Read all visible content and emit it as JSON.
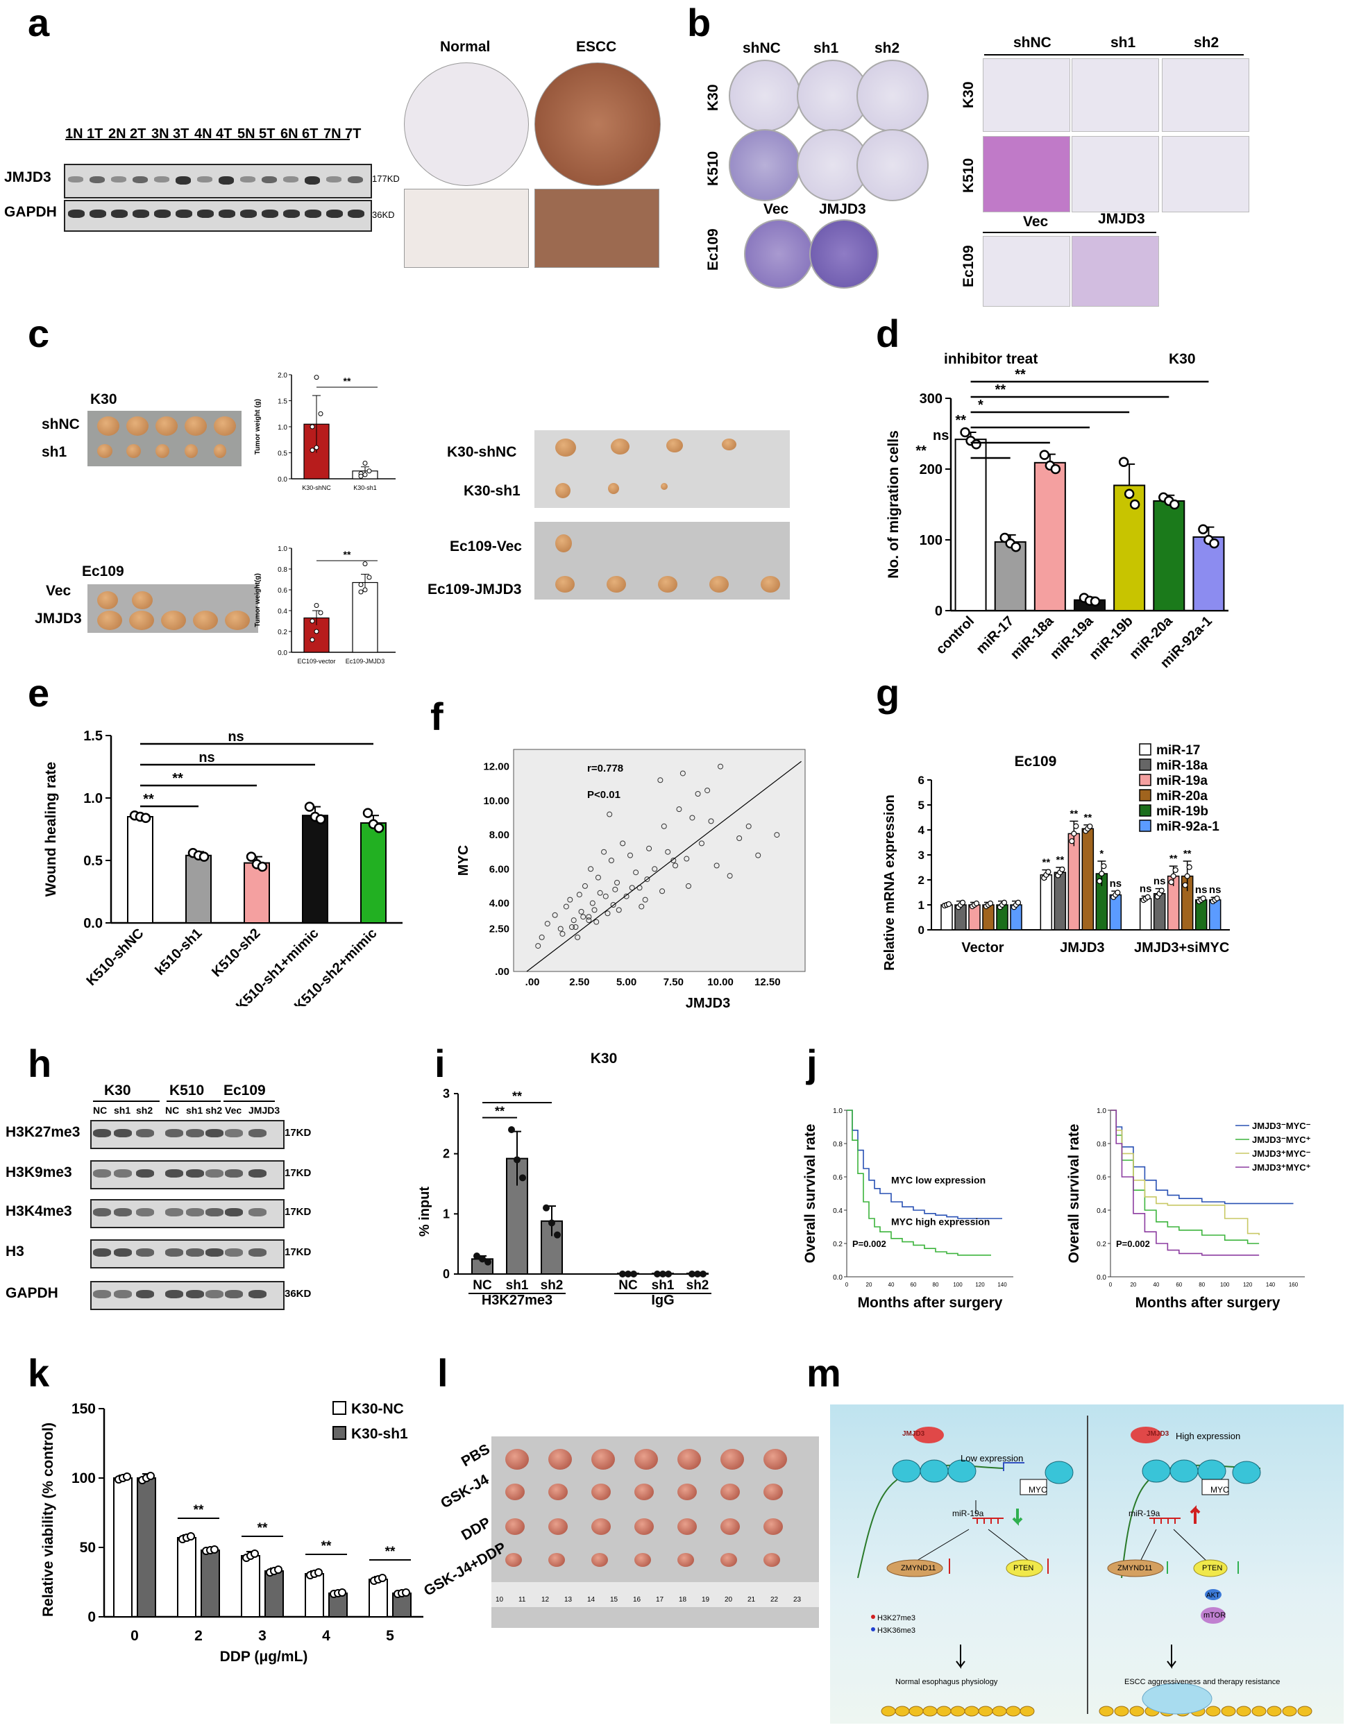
{
  "panels": {
    "a": {
      "letter": "a",
      "lanes": [
        "1N",
        "1T",
        "2N",
        "2T",
        "3N",
        "3T",
        "4N",
        "4T",
        "5N",
        "5T",
        "6N",
        "6T",
        "7N",
        "7T"
      ],
      "rows": [
        "JMJD3",
        "GAPDH"
      ],
      "sizes": [
        "177KD",
        "36KD"
      ],
      "ihc_labels": [
        "Normal",
        "ESCC"
      ]
    },
    "b": {
      "letter": "b",
      "col_labels": [
        "shNC",
        "sh1",
        "sh2"
      ],
      "row_labels": [
        "K30",
        "K510",
        "Ec109"
      ],
      "ec_labels": [
        "Vec",
        "JMJD3"
      ]
    },
    "c": {
      "letter": "c",
      "top": {
        "cell": "K30",
        "rows": [
          "shNC",
          "sh1"
        ],
        "ylabel": "Tumor weight (g)",
        "ticks": [
          "0.0",
          "0.5",
          "1.0",
          "1.5",
          "2.0"
        ],
        "cats": [
          "K30-shNC",
          "K30-sh1"
        ],
        "sig": "**"
      },
      "bottom": {
        "cell": "Ec109",
        "rows": [
          "Vec",
          "JMJD3"
        ],
        "ylabel": "Tumor weight(g)",
        "ticks": [
          "0.0",
          "0.2",
          "0.4",
          "0.6",
          "0.8",
          "1.0"
        ],
        "cats": [
          "EC109-vector",
          "Ec109-JMJD3"
        ],
        "sig": "**"
      },
      "right_labels": [
        "K30-shNC",
        "K30-sh1",
        "Ec109-Vec",
        "Ec109-JMJD3"
      ]
    },
    "d": {
      "letter": "d",
      "subtitle": "inhibitor treat",
      "cell": "K30"
    },
    "e": {
      "letter": "e"
    },
    "f": {
      "letter": "f",
      "r": "r=0.778",
      "p": "P<0.01"
    },
    "g": {
      "letter": "g",
      "cell": "Ec109"
    },
    "h": {
      "letter": "h",
      "groups": [
        "K30",
        "K510",
        "Ec109"
      ],
      "lanes": [
        "NC",
        "sh1",
        "sh2",
        "NC",
        "sh1",
        "sh2",
        "Vec",
        "JMJD3"
      ],
      "rows": [
        "H3K27me3",
        "H3K9me3",
        "H3K4me3",
        "H3",
        "GAPDH"
      ],
      "sizes": [
        "17KD",
        "17KD",
        "17KD",
        "17KD",
        "36KD"
      ]
    },
    "i": {
      "letter": "i"
    },
    "j": {
      "letter": "j"
    },
    "k": {
      "letter": "k"
    },
    "l": {
      "letter": "l",
      "rows": [
        "PBS",
        "GSK-J4",
        "DDP",
        "GSK-J4+DDP"
      ],
      "ruler": [
        "10",
        "11",
        "12",
        "13",
        "14",
        "15",
        "16",
        "17",
        "18",
        "19",
        "20",
        "21",
        "22",
        "23"
      ]
    },
    "m": {
      "letter": "m",
      "left": {
        "expr": "Low expression",
        "jmjd3": "JMJD3",
        "myc": "MYC",
        "mir": "miR-19a",
        "z": "ZMYND11",
        "pten": "PTEN",
        "legend1": "H3K27me3",
        "legend2": "H3K36me3",
        "outcome": "Normal esophagus physiology"
      },
      "right": {
        "expr": "High expression",
        "jmjd3": "JMJD3",
        "myc": "MYC",
        "mir": "miR-19a",
        "z": "ZMYND11",
        "pten": "PTEN",
        "akt": "AKT",
        "mtor": "mTOR",
        "outcome": "ESCC aggressiveness and therapy resistance"
      }
    }
  },
  "chart_data": [
    {
      "id": "c-top",
      "type": "bar",
      "title": "",
      "xlabel": "",
      "ylabel": "Tumor weight (g)",
      "categories": [
        "K30-shNC",
        "K30-sh1"
      ],
      "values": [
        1.05,
        0.15
      ],
      "errors": [
        0.55,
        0.08
      ],
      "ylim": [
        0,
        2.0
      ],
      "points": [
        [
          1.95,
          1.25,
          1.0,
          0.6,
          0.55
        ],
        [
          0.3,
          0.15,
          0.1,
          0.08,
          0.05
        ]
      ],
      "colors": [
        "#b71c1c",
        "#ffffff"
      ]
    },
    {
      "id": "c-bottom",
      "type": "bar",
      "ylabel": "Tumor weight(g)",
      "categories": [
        "EC109-vector",
        "Ec109-JMJD3"
      ],
      "values": [
        0.33,
        0.67
      ],
      "errors": [
        0.07,
        0.08
      ],
      "ylim": [
        0,
        1.0
      ],
      "points": [
        [
          0.45,
          0.38,
          0.3,
          0.2,
          0.12
        ],
        [
          0.85,
          0.72,
          0.65,
          0.6,
          0.58
        ]
      ],
      "colors": [
        "#b71c1c",
        "#ffffff"
      ]
    },
    {
      "id": "d",
      "type": "bar",
      "ylabel": "No. of migration cells",
      "categories": [
        "control",
        "miR-17",
        "miR-18a",
        "miR-19a",
        "miR-19b",
        "miR-20a",
        "miR-92a-1"
      ],
      "values": [
        242,
        97,
        209,
        15,
        177,
        155,
        104
      ],
      "errors": [
        10,
        10,
        12,
        4,
        30,
        8,
        14
      ],
      "ylim": [
        0,
        300
      ],
      "yticks": [
        "0",
        "100",
        "200",
        "300"
      ],
      "points": [
        [
          252,
          240,
          235
        ],
        [
          103,
          95,
          90
        ],
        [
          220,
          205,
          200
        ],
        [
          18,
          14,
          13
        ],
        [
          210,
          165,
          150
        ],
        [
          160,
          155,
          150
        ],
        [
          115,
          100,
          95
        ]
      ],
      "colors": [
        "#ffffff",
        "#9e9e9e",
        "#f4a0a0",
        "#111111",
        "#c8c400",
        "#1b7a1b",
        "#8c8cf0"
      ],
      "sig": [
        {
          "to": "miR-17",
          "label": "**"
        },
        {
          "to": "miR-18a",
          "label": "ns"
        },
        {
          "to": "miR-19a",
          "label": "**"
        },
        {
          "to": "miR-19b",
          "label": "*"
        },
        {
          "to": "miR-20a",
          "label": "**"
        },
        {
          "to": "miR-92a-1",
          "label": "**"
        }
      ]
    },
    {
      "id": "e",
      "type": "bar",
      "ylabel": "Wound healing rate",
      "categories": [
        "K510-shNC",
        "k510-sh1",
        "K510-sh2",
        "K510-sh1+mimic",
        "K510-sh2+mimic"
      ],
      "values": [
        0.85,
        0.54,
        0.48,
        0.86,
        0.8
      ],
      "errors": [
        0.02,
        0.03,
        0.05,
        0.07,
        0.06
      ],
      "ylim": [
        0,
        1.5
      ],
      "yticks": [
        "0.0",
        "0.5",
        "1.0",
        "1.5"
      ],
      "points": [
        [
          0.86,
          0.85,
          0.84
        ],
        [
          0.56,
          0.54,
          0.53
        ],
        [
          0.53,
          0.47,
          0.45
        ],
        [
          0.93,
          0.85,
          0.83
        ],
        [
          0.88,
          0.79,
          0.76
        ]
      ],
      "colors": [
        "#ffffff",
        "#9e9e9e",
        "#f4a0a0",
        "#111111",
        "#22b022"
      ],
      "sig": [
        {
          "to": "k510-sh1",
          "label": "**"
        },
        {
          "to": "K510-sh2",
          "label": "**"
        },
        {
          "to": "K510-sh1+mimic",
          "label": "ns"
        },
        {
          "to": "K510-sh2+mimic",
          "label": "ns"
        }
      ]
    },
    {
      "id": "f",
      "type": "scatter",
      "xlabel": "JMJD3",
      "ylabel": "MYC",
      "xticks": [
        ".00",
        "2.50",
        "5.00",
        "7.50",
        "10.00",
        "12.50"
      ],
      "yticks": [
        ".00",
        "2.50",
        "4.00",
        "6.00",
        "8.00",
        "10.00",
        "12.00"
      ],
      "xlim": [
        -1,
        14.5
      ],
      "ylim": [
        0,
        13
      ],
      "x": [
        0.3,
        0.5,
        0.8,
        1.2,
        1.5,
        1.8,
        2.0,
        2.2,
        2.3,
        2.5,
        2.6,
        2.8,
        3.0,
        3.1,
        3.2,
        3.3,
        3.5,
        3.6,
        3.8,
        4.0,
        4.1,
        4.2,
        4.4,
        4.5,
        4.8,
        5.0,
        5.2,
        5.5,
        5.8,
        6.0,
        6.2,
        6.5,
        6.8,
        7.0,
        7.2,
        7.5,
        7.8,
        8.0,
        8.3,
        8.5,
        8.8,
        9.0,
        9.3,
        9.5,
        9.8,
        10.0,
        10.5,
        11.0,
        11.5,
        12.0,
        13.0,
        1.6,
        2.1,
        2.7,
        3.4,
        3.9,
        4.6,
        5.3,
        6.1,
        6.9,
        7.6,
        8.2,
        3.0,
        2.4,
        4.3,
        5.7
      ],
      "y": [
        1.5,
        2.0,
        2.8,
        3.3,
        2.5,
        3.8,
        4.2,
        3.0,
        2.6,
        4.5,
        3.5,
        5.0,
        3.2,
        6.0,
        4.0,
        3.6,
        5.5,
        4.6,
        7.0,
        3.4,
        9.2,
        6.5,
        4.8,
        5.2,
        7.5,
        4.4,
        6.8,
        5.8,
        3.8,
        4.2,
        7.2,
        6.0,
        11.2,
        8.5,
        7.0,
        6.5,
        9.5,
        11.6,
        5.0,
        9.0,
        10.4,
        7.5,
        10.6,
        8.8,
        6.2,
        12.0,
        5.6,
        7.8,
        8.5,
        6.8,
        8.0,
        2.2,
        2.6,
        3.2,
        2.9,
        4.4,
        3.6,
        4.9,
        5.4,
        4.7,
        6.2,
        6.6,
        3.0,
        2.0,
        3.9,
        4.9
      ],
      "fit": [
        [
          -0.3,
          0.0
        ],
        [
          14.3,
          12.3
        ]
      ]
    },
    {
      "id": "g",
      "type": "bar",
      "ylabel": "Relative mRNA expression",
      "categories": [
        "Vector",
        "JMJD3",
        "JMJD3+siMYC"
      ],
      "series": [
        {
          "name": "miR-17",
          "color": "#ffffff",
          "values": [
            1.0,
            2.2,
            1.25
          ],
          "errors": [
            0.05,
            0.2,
            0.1
          ],
          "sig": [
            "",
            "**",
            "ns"
          ]
        },
        {
          "name": "miR-18a",
          "color": "#666666",
          "values": [
            1.0,
            2.3,
            1.45
          ],
          "errors": [
            0.15,
            0.2,
            0.2
          ],
          "sig": [
            "",
            "**",
            "ns"
          ]
        },
        {
          "name": "miR-19a",
          "color": "#f4a0a0",
          "values": [
            1.0,
            3.85,
            2.15
          ],
          "errors": [
            0.1,
            0.5,
            0.4
          ],
          "sig": [
            "",
            "**",
            "**"
          ]
        },
        {
          "name": "miR-20a",
          "color": "#a0641e",
          "values": [
            1.0,
            4.05,
            2.15
          ],
          "errors": [
            0.1,
            0.15,
            0.6
          ],
          "sig": [
            "",
            "**",
            "**"
          ]
        },
        {
          "name": "miR-19b",
          "color": "#1b6e1b",
          "values": [
            1.0,
            2.25,
            1.2
          ],
          "errors": [
            0.15,
            0.5,
            0.1
          ],
          "sig": [
            "",
            "*",
            "ns"
          ]
        },
        {
          "name": "miR-92a-1",
          "color": "#5b9bff",
          "values": [
            1.0,
            1.4,
            1.2
          ],
          "errors": [
            0.15,
            0.15,
            0.1
          ],
          "sig": [
            "",
            "ns",
            "ns"
          ]
        }
      ],
      "ylim": [
        0,
        6
      ],
      "yticks": [
        "0",
        "1",
        "2",
        "3",
        "4",
        "5",
        "6"
      ]
    },
    {
      "id": "i",
      "type": "bar",
      "ylabel": "% input",
      "title": "K30",
      "categories": [
        "NC",
        "sh1",
        "sh2",
        "NC",
        "sh1",
        "sh2"
      ],
      "groups": [
        "H3K27me3",
        "IgG"
      ],
      "values": [
        0.25,
        1.92,
        0.88,
        0.01,
        0.01,
        0.01
      ],
      "errors": [
        0.05,
        0.45,
        0.25,
        0,
        0,
        0
      ],
      "ylim": [
        0,
        3
      ],
      "yticks": [
        "0",
        "1",
        "2",
        "3"
      ],
      "points": [
        [
          0.3,
          0.25,
          0.2
        ],
        [
          2.4,
          1.9,
          1.6
        ],
        [
          1.1,
          0.85,
          0.65
        ],
        [
          0,
          0,
          0
        ],
        [
          0,
          0,
          0
        ],
        [
          0,
          0,
          0
        ]
      ],
      "sig": [
        {
          "to": "sh1",
          "label": "**"
        },
        {
          "to": "sh2",
          "label": "**"
        }
      ]
    },
    {
      "id": "j-left",
      "type": "line",
      "xlabel": "Months after surgery",
      "ylabel": "Overall survival rate",
      "annotation": "P=0.002",
      "series": [
        {
          "name": "MYC low expression",
          "color": "#2850b4",
          "x": [
            0,
            5,
            10,
            15,
            20,
            25,
            30,
            40,
            50,
            60,
            70,
            80,
            90,
            100,
            110,
            120,
            130,
            140
          ],
          "y": [
            1.0,
            0.88,
            0.76,
            0.65,
            0.58,
            0.53,
            0.5,
            0.45,
            0.42,
            0.4,
            0.38,
            0.37,
            0.36,
            0.35,
            0.35,
            0.35,
            0.35,
            0.35
          ]
        },
        {
          "name": "MYC high expression",
          "color": "#3cb43c",
          "x": [
            0,
            5,
            10,
            15,
            20,
            25,
            30,
            40,
            50,
            60,
            70,
            80,
            90,
            100,
            110,
            120,
            130
          ],
          "y": [
            1.0,
            0.82,
            0.62,
            0.45,
            0.35,
            0.3,
            0.27,
            0.23,
            0.21,
            0.19,
            0.17,
            0.15,
            0.14,
            0.13,
            0.13,
            0.13,
            0.13
          ]
        }
      ],
      "xticks": [
        "0",
        "20",
        "40",
        "60",
        "80",
        "100",
        "120",
        "140"
      ],
      "yticks": [
        "0.0",
        "0.2",
        "0.4",
        "0.6",
        "0.8",
        "1.0"
      ],
      "xlim": [
        0,
        150
      ],
      "ylim": [
        0,
        1
      ]
    },
    {
      "id": "j-right",
      "type": "line",
      "xlabel": "Months after surgery",
      "ylabel": "Overall survival rate",
      "annotation": "P=0.002",
      "series": [
        {
          "name": "JMJD3⁻MYC⁻",
          "color": "#2850b4",
          "x": [
            0,
            5,
            10,
            20,
            30,
            40,
            50,
            60,
            80,
            100,
            120,
            160
          ],
          "y": [
            1.0,
            0.9,
            0.78,
            0.66,
            0.58,
            0.52,
            0.49,
            0.47,
            0.45,
            0.44,
            0.44,
            0.44
          ]
        },
        {
          "name": "JMJD3⁻MYC⁺",
          "color": "#3cb43c",
          "x": [
            0,
            5,
            10,
            20,
            30,
            40,
            50,
            60,
            80,
            100,
            120,
            130
          ],
          "y": [
            1.0,
            0.85,
            0.7,
            0.52,
            0.4,
            0.33,
            0.3,
            0.28,
            0.25,
            0.22,
            0.2,
            0.2
          ]
        },
        {
          "name": "JMJD3⁺MYC⁻",
          "color": "#c8c864",
          "x": [
            0,
            5,
            10,
            20,
            30,
            40,
            50,
            60,
            80,
            100,
            120,
            130
          ],
          "y": [
            1.0,
            0.88,
            0.74,
            0.58,
            0.48,
            0.44,
            0.43,
            0.43,
            0.43,
            0.35,
            0.26,
            0.25
          ]
        },
        {
          "name": "JMJD3⁺MYC⁺",
          "color": "#8c3ca0",
          "x": [
            0,
            5,
            10,
            20,
            30,
            40,
            50,
            60,
            80,
            100,
            120,
            130
          ],
          "y": [
            1.0,
            0.8,
            0.6,
            0.38,
            0.27,
            0.2,
            0.16,
            0.14,
            0.13,
            0.13,
            0.13,
            0.13
          ]
        }
      ],
      "xticks": [
        "0",
        "20",
        "40",
        "60",
        "80",
        "100",
        "120",
        "140",
        "160"
      ],
      "yticks": [
        "0.0",
        "0.2",
        "0.4",
        "0.6",
        "0.8",
        "1.0"
      ],
      "xlim": [
        0,
        170
      ],
      "ylim": [
        0,
        1
      ]
    },
    {
      "id": "k",
      "type": "bar",
      "xlabel": "DDP (μg/mL)",
      "ylabel": "Relative viability (% control)",
      "categories": [
        "0",
        "2",
        "3",
        "4",
        "5"
      ],
      "series": [
        {
          "name": "K30-NC",
          "color": "#ffffff",
          "values": [
            100,
            57,
            44,
            31,
            27
          ],
          "errors": [
            2,
            2,
            3,
            2,
            2
          ]
        },
        {
          "name": "K30-sh1",
          "color": "#666666",
          "values": [
            100,
            48,
            33,
            17,
            17
          ],
          "errors": [
            3,
            1,
            2,
            1,
            1
          ]
        }
      ],
      "sig": [
        "",
        "**",
        "**",
        "**",
        "**"
      ],
      "ylim": [
        0,
        150
      ],
      "yticks": [
        "0",
        "50",
        "100",
        "150"
      ]
    }
  ]
}
